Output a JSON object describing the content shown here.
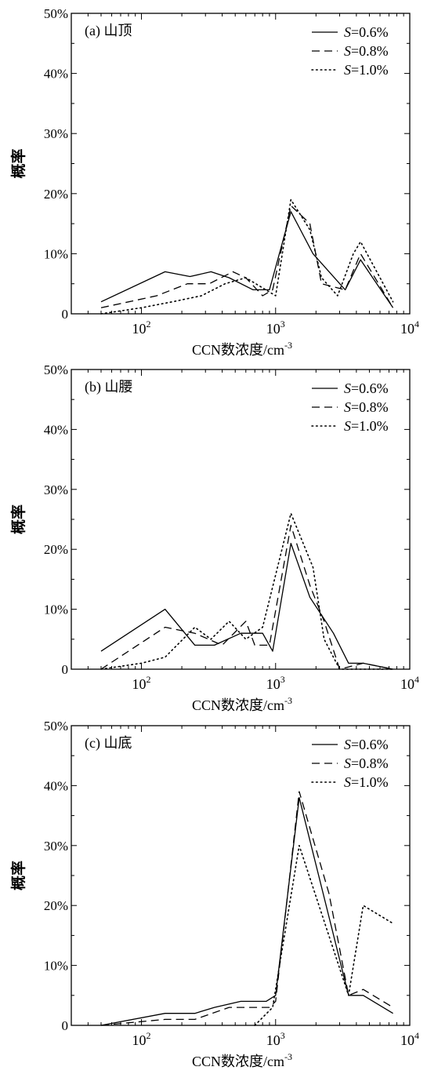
{
  "chart_data": [
    {
      "type": "line",
      "panel_label": "(a) 山顶",
      "xlabel": "CCN数浓度/cm",
      "xlabel_sup": "-3",
      "ylabel": "概率",
      "x_scale": "log",
      "xlim": [
        30,
        10000
      ],
      "ylim": [
        0,
        50
      ],
      "y_ticks": [
        "0",
        "10%",
        "20%",
        "30%",
        "40%",
        "50%"
      ],
      "x_ticks": [
        {
          "base": "10",
          "exp": "2"
        },
        {
          "base": "10",
          "exp": "3"
        },
        {
          "base": "10",
          "exp": "4"
        }
      ],
      "legend_position": "top-right",
      "series": [
        {
          "name": "S=0.6%",
          "name_italic": "S",
          "name_rest": "=0.6%",
          "dash": "solid",
          "x": [
            50,
            150,
            230,
            330,
            450,
            680,
            900,
            1300,
            1900,
            3300,
            4300,
            7500
          ],
          "y": [
            2,
            7,
            6.2,
            7,
            6,
            4,
            4,
            17,
            10,
            4,
            9,
            1
          ]
        },
        {
          "name": "S=0.8%",
          "name_italic": "S",
          "name_rest": "=0.8%",
          "dash": "dashed",
          "x": [
            50,
            130,
            220,
            320,
            480,
            600,
            800,
            950,
            1300,
            1800,
            2200,
            3300,
            4300,
            7500
          ],
          "y": [
            1,
            3,
            5,
            5,
            7,
            6,
            3,
            4,
            18,
            15,
            5,
            4,
            10,
            1
          ]
        },
        {
          "name": "S=1.0%",
          "name_italic": "S",
          "name_rest": "=1.0%",
          "dash": "dotted",
          "x": [
            50,
            100,
            170,
            280,
            420,
            600,
            1000,
            1300,
            1800,
            2200,
            2900,
            3800,
            4300,
            7500
          ],
          "y": [
            0,
            1,
            2,
            3,
            5,
            6,
            3,
            19,
            14,
            6,
            3,
            10,
            12,
            2
          ]
        }
      ]
    },
    {
      "type": "line",
      "panel_label": "(b) 山腰",
      "xlabel": "CCN数浓度/cm",
      "xlabel_sup": "-3",
      "ylabel": "概率",
      "x_scale": "log",
      "xlim": [
        30,
        10000
      ],
      "ylim": [
        0,
        50
      ],
      "y_ticks": [
        "0",
        "10%",
        "20%",
        "30%",
        "40%",
        "50%"
      ],
      "x_ticks": [
        {
          "base": "10",
          "exp": "2"
        },
        {
          "base": "10",
          "exp": "3"
        },
        {
          "base": "10",
          "exp": "4"
        }
      ],
      "legend_position": "top-right",
      "series": [
        {
          "name": "S=0.6%",
          "name_italic": "S",
          "name_rest": "=0.6%",
          "dash": "solid",
          "x": [
            50,
            150,
            250,
            350,
            550,
            800,
            950,
            1300,
            1800,
            2700,
            3500,
            4500,
            7500
          ],
          "y": [
            3,
            10,
            4,
            4,
            6,
            6,
            3,
            21,
            12,
            6,
            1,
            1,
            0
          ]
        },
        {
          "name": "S=0.8%",
          "name_italic": "S",
          "name_rest": "=0.8%",
          "dash": "dashed",
          "x": [
            50,
            150,
            250,
            400,
            600,
            700,
            900,
            1300,
            1800,
            2300,
            3000,
            4500,
            7500
          ],
          "y": [
            0,
            7,
            6,
            4,
            8,
            4,
            4,
            24,
            14,
            8,
            0,
            1,
            0
          ]
        },
        {
          "name": "S=1.0%",
          "name_italic": "S",
          "name_rest": "=1.0%",
          "dash": "dotted",
          "x": [
            50,
            100,
            150,
            250,
            330,
            450,
            600,
            800,
            1300,
            1900,
            2300,
            3000,
            4500,
            7500
          ],
          "y": [
            0,
            1,
            2,
            7,
            5,
            8,
            5,
            7,
            26,
            17,
            5,
            0,
            0,
            0
          ]
        }
      ]
    },
    {
      "type": "line",
      "panel_label": "(c) 山底",
      "xlabel": "CCN数浓度/cm",
      "xlabel_sup": "-3",
      "ylabel": "概率",
      "x_scale": "log",
      "xlim": [
        30,
        10000
      ],
      "ylim": [
        0,
        50
      ],
      "y_ticks": [
        "0",
        "10%",
        "20%",
        "30%",
        "40%",
        "50%"
      ],
      "x_ticks": [
        {
          "base": "10",
          "exp": "2"
        },
        {
          "base": "10",
          "exp": "3"
        },
        {
          "base": "10",
          "exp": "4"
        }
      ],
      "legend_position": "top-right",
      "series": [
        {
          "name": "S=0.6%",
          "name_italic": "S",
          "name_rest": "=0.6%",
          "dash": "solid",
          "x": [
            50,
            150,
            250,
            350,
            550,
            850,
            1000,
            1500,
            3500,
            4500,
            7500
          ],
          "y": [
            0,
            2,
            2,
            3,
            4,
            4,
            5,
            38,
            5,
            5,
            2
          ]
        },
        {
          "name": "S=0.8%",
          "name_italic": "S",
          "name_rest": "=0.8%",
          "dash": "dashed",
          "x": [
            50,
            150,
            250,
            450,
            900,
            1000,
            1500,
            2500,
            3500,
            4500,
            7500
          ],
          "y": [
            0,
            1,
            1,
            3,
            3,
            4,
            39,
            22,
            5,
            6,
            3
          ]
        },
        {
          "name": "S=1.0%",
          "name_italic": "S",
          "name_rest": "=1.0%",
          "dash": "dotted",
          "x": [
            700,
            950,
            1500,
            3500,
            4500,
            7500
          ],
          "y": [
            0,
            3,
            30,
            5,
            20,
            17
          ]
        }
      ]
    }
  ]
}
